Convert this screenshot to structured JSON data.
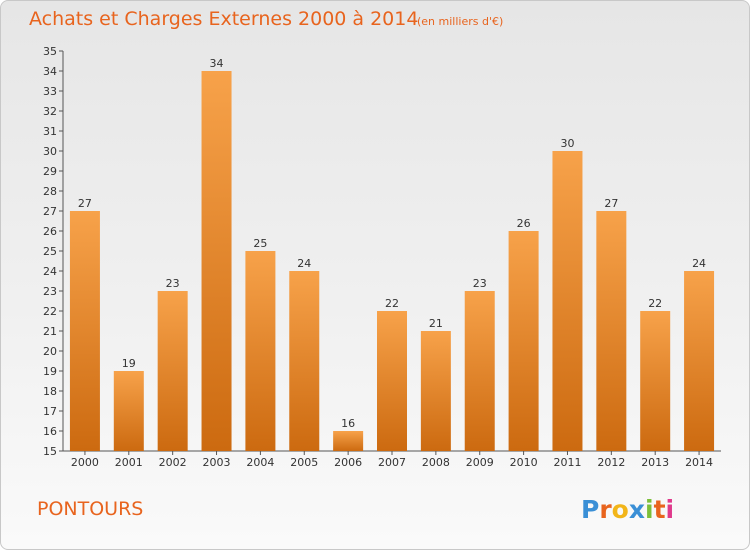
{
  "chart_data": {
    "type": "bar",
    "title": "Achats et Charges Externes 2000 à 2014",
    "subtitle": "(en milliers d'€)",
    "categories": [
      "2000",
      "2001",
      "2002",
      "2003",
      "2004",
      "2005",
      "2006",
      "2007",
      "2008",
      "2009",
      "2010",
      "2011",
      "2012",
      "2013",
      "2014"
    ],
    "values": [
      27,
      19,
      23,
      34,
      25,
      24,
      16,
      22,
      21,
      23,
      26,
      30,
      27,
      22,
      24
    ],
    "ylim": [
      15,
      35
    ],
    "yticks": [
      15,
      16,
      17,
      18,
      19,
      20,
      21,
      22,
      23,
      24,
      25,
      26,
      27,
      28,
      29,
      30,
      31,
      32,
      33,
      34,
      35
    ],
    "grid": false,
    "bar_color": "#f0922f"
  },
  "commune": "PONTOURS",
  "logo": {
    "letters": [
      "P",
      "r",
      "o",
      "x",
      "i",
      "t",
      "i"
    ],
    "colors": [
      "#3a8fd6",
      "#e8641e",
      "#f2b519",
      "#3a8fd6",
      "#7cbf3a",
      "#e8641e",
      "#e03a8c"
    ]
  }
}
